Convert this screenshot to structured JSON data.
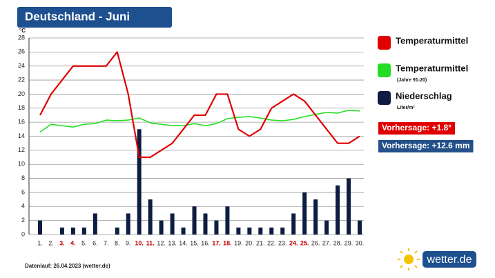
{
  "header": {
    "title": "Deutschland - Juni"
  },
  "chart_data": {
    "type": "combo",
    "y_label": "°C",
    "categories": [
      "1.",
      "2.",
      "3.",
      "4.",
      "5.",
      "6.",
      "7.",
      "8.",
      "9.",
      "10.",
      "11.",
      "12.",
      "13.",
      "14.",
      "15.",
      "16.",
      "17.",
      "18.",
      "19.",
      "20.",
      "21.",
      "22.",
      "23.",
      "24.",
      "25.",
      "26.",
      "27.",
      "28.",
      "29.",
      "30."
    ],
    "highlighted_categories": [
      "3.",
      "4.",
      "10.",
      "11.",
      "17.",
      "18.",
      "24.",
      "25."
    ],
    "highlight_color": "#c00000",
    "series": [
      {
        "name": "Niederschlag",
        "unit": "Liter/m²",
        "type": "bar",
        "color": "#0d1c40",
        "values": [
          2,
          0,
          1,
          1,
          1,
          3,
          0,
          1,
          3,
          15,
          5,
          2,
          3,
          1,
          4,
          3,
          2,
          4,
          1,
          1,
          1,
          1,
          1,
          3,
          6,
          5,
          2,
          7,
          8,
          2
        ]
      },
      {
        "name": "Temperaturmittel",
        "note": "(Jahre 91-20)",
        "type": "line",
        "color": "#22dd22",
        "values": [
          14.6,
          15.7,
          15.5,
          15.3,
          15.7,
          15.8,
          16.3,
          16.2,
          16.3,
          16.6,
          15.9,
          15.7,
          15.5,
          15.5,
          15.8,
          15.5,
          15.8,
          16.5,
          16.7,
          16.8,
          16.6,
          16.3,
          16.2,
          16.4,
          16.8,
          17.1,
          17.4,
          17.3,
          17.7,
          17.6
        ]
      },
      {
        "name": "Temperaturmittel",
        "type": "line",
        "color": "#e00000",
        "values": [
          17,
          20,
          22,
          24,
          24,
          24,
          24,
          26,
          20,
          11,
          11,
          12,
          13,
          15,
          17,
          17,
          20,
          20,
          15,
          14,
          15,
          18,
          19,
          20,
          19,
          17,
          15,
          13,
          13,
          14
        ]
      }
    ],
    "ylim": [
      0,
      28
    ],
    "yticks": [
      0,
      2,
      4,
      6,
      8,
      10,
      12,
      14,
      16,
      18,
      20,
      22,
      24,
      26,
      28
    ],
    "grid": true,
    "annotations": [
      {
        "text": "Vorhersage: +1.8°",
        "color": "#e00000"
      },
      {
        "text": "Vorhersage: +12.6 mm",
        "color": "#24508a"
      }
    ]
  },
  "footer": {
    "source": "Datenlauf: 26.04.2023 (wetter.de)",
    "logo": "wetter.de"
  }
}
